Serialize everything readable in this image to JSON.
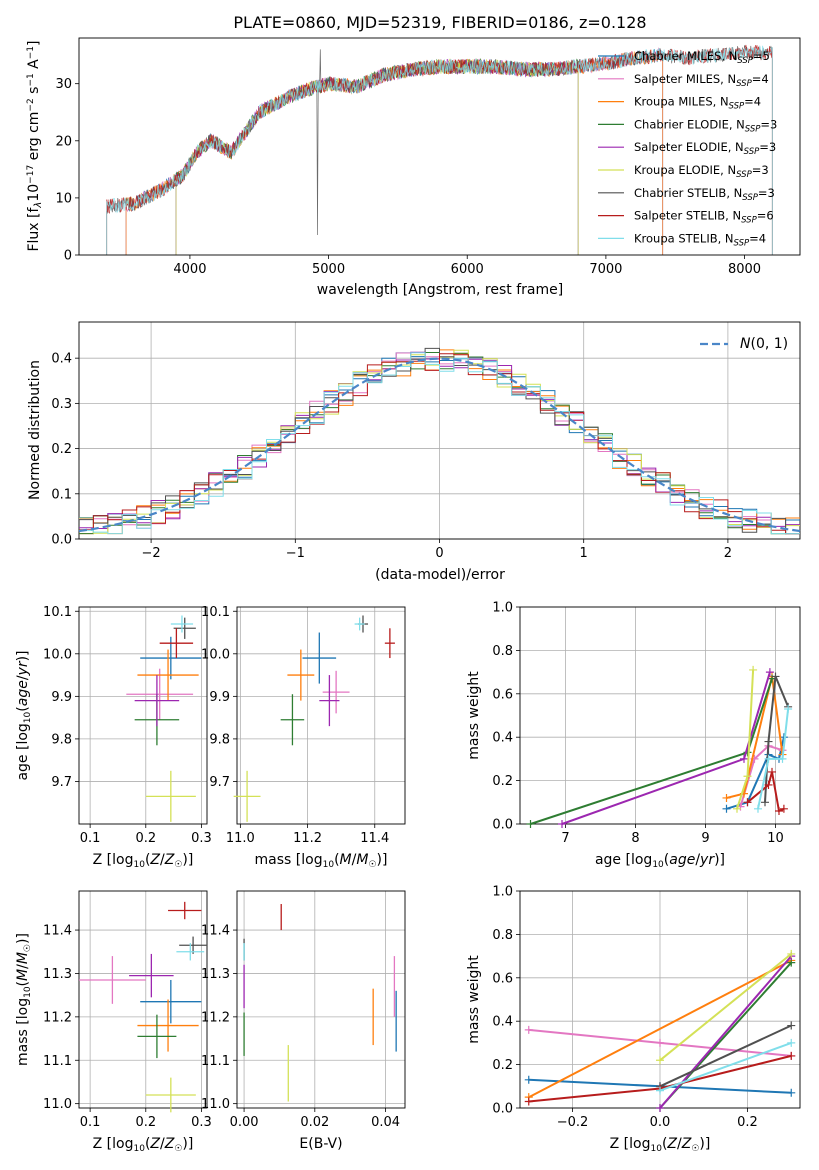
{
  "figure": {
    "title": "PLATE=0860, MJD=52319, FIBERID=0186, z=0.128"
  },
  "model_colors": {
    "Chabrier MILES": "#1f77b4",
    "Salpeter MILES": "#e377c2",
    "Kroupa MILES": "#ff7f0e",
    "Chabrier ELODIE": "#2e7d32",
    "Salpeter ELODIE": "#9c27b0",
    "Kroupa ELODIE": "#d4e157",
    "Chabrier STELIB": "#505050",
    "Salpeter STELIB": "#b71c1c",
    "Kroupa STELIB": "#80deea"
  },
  "chart_data": [
    {
      "id": "spectrum",
      "type": "line",
      "title": "PLATE=0860, MJD=52319, FIBERID=0186, z=0.128",
      "xlabel": "wavelength [Angstrom, rest frame]",
      "ylabel": "Flux [f_λ 10^-17 erg cm^-2 s^-1 A^-1]",
      "xlim": [
        3200,
        8400
      ],
      "ylim": [
        0,
        38
      ],
      "xticks": [
        4000,
        5000,
        6000,
        7000,
        8000
      ],
      "yticks": [
        0,
        10,
        20,
        30
      ],
      "legend": "top-right",
      "legend_entries": [
        {
          "model": "Chabrier MILES",
          "label": "Chabrier MILES",
          "nssp": "5"
        },
        {
          "model": "Salpeter MILES",
          "label": "Salpeter MILES",
          "nssp": "4"
        },
        {
          "model": "Kroupa MILES",
          "label": "Kroupa MILES",
          "nssp": "4"
        },
        {
          "model": "Chabrier ELODIE",
          "label": "Chabrier ELODIE",
          "nssp": "3"
        },
        {
          "model": "Salpeter ELODIE",
          "label": "Salpeter ELODIE",
          "nssp": "3"
        },
        {
          "model": "Kroupa ELODIE",
          "label": "Kroupa ELODIE",
          "nssp": "3"
        },
        {
          "model": "Chabrier STELIB",
          "label": "Chabrier STELIB",
          "nssp": "3"
        },
        {
          "model": "Salpeter STELIB",
          "label": "Salpeter STELIB",
          "nssp": "6"
        },
        {
          "model": "Kroupa STELIB",
          "label": "Kroupa STELIB",
          "nssp": "4"
        }
      ],
      "observed_continuum": {
        "wavelength": [
          3400,
          3600,
          3800,
          3950,
          4050,
          4150,
          4300,
          4500,
          4700,
          4850,
          5000,
          5200,
          5400,
          5600,
          5800,
          6000,
          6200,
          6400,
          6600,
          6800,
          7000,
          7200,
          7400,
          7600,
          7800,
          8000,
          8200
        ],
        "flux": [
          8.5,
          9.0,
          11.5,
          14.0,
          18.0,
          20.0,
          18.0,
          25.0,
          27.5,
          29.0,
          30.0,
          29.5,
          31.5,
          32.5,
          33.0,
          33.0,
          33.0,
          32.5,
          32.5,
          33.0,
          33.5,
          34.5,
          35.0,
          34.5,
          35.0,
          35.5,
          35.5
        ]
      },
      "model_ranges": [
        {
          "model": "Chabrier MILES",
          "wmin": 3540,
          "wmax": 7410
        },
        {
          "model": "Salpeter MILES",
          "wmin": 3540,
          "wmax": 7410
        },
        {
          "model": "Kroupa MILES",
          "wmin": 3540,
          "wmax": 7410
        },
        {
          "model": "Chabrier ELODIE",
          "wmin": 3900,
          "wmax": 6800
        },
        {
          "model": "Salpeter ELODIE",
          "wmin": 3900,
          "wmax": 6800
        },
        {
          "model": "Kroupa ELODIE",
          "wmin": 3900,
          "wmax": 6800
        },
        {
          "model": "Chabrier STELIB",
          "wmin": 3400,
          "wmax": 8200
        },
        {
          "model": "Salpeter STELIB",
          "wmin": 3400,
          "wmax": 8200
        },
        {
          "model": "Kroupa STELIB",
          "wmin": 3400,
          "wmax": 8200
        }
      ]
    },
    {
      "id": "residuals",
      "type": "area",
      "xlabel": "(data-model)/error",
      "ylabel": "Normed distribution",
      "xlim": [
        -2.5,
        2.5
      ],
      "ylim": [
        0,
        0.48
      ],
      "xticks": [
        -2,
        -1,
        0,
        1,
        2
      ],
      "yticks": [
        0.0,
        0.1,
        0.2,
        0.3,
        0.4
      ],
      "grid": true,
      "legend": "top-right",
      "reference_curve": {
        "label": "N(0,1)",
        "color": "#4a86c8",
        "style": "dashed"
      },
      "histogram": {
        "bin_width": 0.1,
        "x_start": -2.5,
        "n_bins": 50
      }
    },
    {
      "id": "age-vs-Z",
      "type": "scatter",
      "xlabel": "Z [log10(Z/Z☉)]",
      "ylabel": "age [log10(age/yr)]",
      "xlim": [
        0.08,
        0.31
      ],
      "ylim": [
        9.6,
        10.11
      ],
      "xticks": [
        0.1,
        0.2,
        0.3
      ],
      "yticks": [
        9.7,
        9.8,
        9.9,
        10.0,
        10.1
      ],
      "points": [
        {
          "model": "Chabrier MILES",
          "x": 0.245,
          "xerr": 0.055,
          "y": 9.99,
          "yerr": 0.05
        },
        {
          "model": "Salpeter MILES",
          "x": 0.225,
          "xerr": 0.06,
          "y": 9.905,
          "yerr": 0.06
        },
        {
          "model": "Kroupa MILES",
          "x": 0.24,
          "xerr": 0.055,
          "y": 9.95,
          "yerr": 0.06
        },
        {
          "model": "Chabrier ELODIE",
          "x": 0.22,
          "xerr": 0.04,
          "y": 9.845,
          "yerr": 0.06
        },
        {
          "model": "Salpeter ELODIE",
          "x": 0.22,
          "xerr": 0.04,
          "y": 9.89,
          "yerr": 0.06
        },
        {
          "model": "Kroupa ELODIE",
          "x": 0.245,
          "xerr": 0.045,
          "y": 9.665,
          "yerr": 0.06
        },
        {
          "model": "Chabrier STELIB",
          "x": 0.27,
          "xerr": 0.02,
          "y": 10.06,
          "yerr": 0.025
        },
        {
          "model": "Salpeter STELIB",
          "x": 0.255,
          "xerr": 0.03,
          "y": 10.025,
          "yerr": 0.035
        },
        {
          "model": "Kroupa STELIB",
          "x": 0.265,
          "xerr": 0.02,
          "y": 10.07,
          "yerr": 0.02
        }
      ]
    },
    {
      "id": "age-vs-mass",
      "type": "scatter",
      "xlabel": "mass [log10(M/M☉)]",
      "xlim": [
        10.99,
        11.49
      ],
      "ylim": [
        9.6,
        10.11
      ],
      "xticks": [
        11.0,
        11.2,
        11.4
      ],
      "yticks": [
        9.7,
        9.8,
        9.9,
        10.0,
        10.1
      ],
      "points": [
        {
          "model": "Chabrier MILES",
          "x": 11.235,
          "xerr": 0.05,
          "y": 9.99,
          "yerr": 0.06
        },
        {
          "model": "Salpeter MILES",
          "x": 11.285,
          "xerr": 0.04,
          "y": 9.91,
          "yerr": 0.05
        },
        {
          "model": "Kroupa MILES",
          "x": 11.18,
          "xerr": 0.04,
          "y": 9.95,
          "yerr": 0.06
        },
        {
          "model": "Chabrier ELODIE",
          "x": 11.155,
          "xerr": 0.035,
          "y": 9.845,
          "yerr": 0.06
        },
        {
          "model": "Salpeter ELODIE",
          "x": 11.265,
          "xerr": 0.03,
          "y": 9.89,
          "yerr": 0.06
        },
        {
          "model": "Kroupa ELODIE",
          "x": 11.02,
          "xerr": 0.04,
          "y": 9.665,
          "yerr": 0.06
        },
        {
          "model": "Chabrier STELIB",
          "x": 11.365,
          "xerr": 0.015,
          "y": 10.07,
          "yerr": 0.02
        },
        {
          "model": "Salpeter STELIB",
          "x": 11.445,
          "xerr": 0.015,
          "y": 10.025,
          "yerr": 0.035
        },
        {
          "model": "Kroupa STELIB",
          "x": 11.355,
          "xerr": 0.015,
          "y": 10.07,
          "yerr": 0.015
        }
      ]
    },
    {
      "id": "weight-vs-age",
      "type": "line",
      "xlabel": "age [log10(age/yr)]",
      "ylabel": "mass weight",
      "xlim": [
        6.35,
        10.35
      ],
      "ylim": [
        0,
        1.0
      ],
      "xticks": [
        7,
        8,
        9,
        10
      ],
      "yticks": [
        0.0,
        0.2,
        0.4,
        0.6,
        0.8,
        1.0
      ],
      "grid": true,
      "series": [
        {
          "model": "Chabrier MILES",
          "x": [
            9.3,
            9.6,
            9.9,
            10.05,
            10.12
          ],
          "y": [
            0.07,
            0.1,
            0.32,
            0.3,
            0.4
          ]
        },
        {
          "model": "Salpeter MILES",
          "x": [
            9.5,
            9.7,
            9.9,
            10.1
          ],
          "y": [
            0.08,
            0.3,
            0.36,
            0.34
          ]
        },
        {
          "model": "Kroupa MILES",
          "x": [
            9.3,
            9.55,
            9.95,
            10.1
          ],
          "y": [
            0.12,
            0.14,
            0.68,
            0.32
          ]
        },
        {
          "model": "Chabrier ELODIE",
          "x": [
            6.5,
            9.6,
            9.95
          ],
          "y": [
            0.0,
            0.33,
            0.67
          ]
        },
        {
          "model": "Salpeter ELODIE",
          "x": [
            6.95,
            9.55,
            9.92
          ],
          "y": [
            0.0,
            0.3,
            0.7
          ]
        },
        {
          "model": "Kroupa ELODIE",
          "x": [
            9.45,
            9.6,
            9.68
          ],
          "y": [
            0.07,
            0.22,
            0.71
          ]
        },
        {
          "model": "Chabrier STELIB",
          "x": [
            9.85,
            9.9,
            10.0,
            10.18
          ],
          "y": [
            0.1,
            0.38,
            0.68,
            0.54
          ]
        },
        {
          "model": "Salpeter STELIB",
          "x": [
            9.6,
            9.9,
            9.95,
            10.05,
            10.12
          ],
          "y": [
            0.1,
            0.18,
            0.24,
            0.06,
            0.07
          ]
        },
        {
          "model": "Kroupa STELIB",
          "x": [
            9.75,
            9.9,
            10.1,
            10.18
          ],
          "y": [
            0.07,
            0.3,
            0.3,
            0.53
          ]
        }
      ]
    },
    {
      "id": "mass-vs-Z",
      "type": "scatter",
      "xlabel": "Z [log10(Z/Z☉)]",
      "ylabel": "mass [log10(M/M☉)]",
      "xlim": [
        0.08,
        0.31
      ],
      "ylim": [
        10.99,
        11.49
      ],
      "xticks": [
        0.1,
        0.2,
        0.3
      ],
      "yticks": [
        11.0,
        11.1,
        11.2,
        11.3,
        11.4
      ],
      "points": [
        {
          "model": "Chabrier MILES",
          "x": 0.245,
          "xerr": 0.055,
          "y": 11.235,
          "yerr": 0.05
        },
        {
          "model": "Salpeter MILES",
          "x": 0.14,
          "xerr": 0.06,
          "y": 11.285,
          "yerr": 0.055
        },
        {
          "model": "Kroupa MILES",
          "x": 0.24,
          "xerr": 0.055,
          "y": 11.18,
          "yerr": 0.06
        },
        {
          "model": "Chabrier ELODIE",
          "x": 0.22,
          "xerr": 0.035,
          "y": 11.155,
          "yerr": 0.05
        },
        {
          "model": "Salpeter ELODIE",
          "x": 0.21,
          "xerr": 0.04,
          "y": 11.295,
          "yerr": 0.05
        },
        {
          "model": "Kroupa ELODIE",
          "x": 0.245,
          "xerr": 0.045,
          "y": 11.02,
          "yerr": 0.04
        },
        {
          "model": "Chabrier STELIB",
          "x": 0.285,
          "xerr": 0.025,
          "y": 11.365,
          "yerr": 0.02
        },
        {
          "model": "Salpeter STELIB",
          "x": 0.27,
          "xerr": 0.03,
          "y": 11.445,
          "yerr": 0.02
        },
        {
          "model": "Kroupa STELIB",
          "x": 0.28,
          "xerr": 0.025,
          "y": 11.35,
          "yerr": 0.02
        }
      ]
    },
    {
      "id": "mass-vs-ebv",
      "type": "scatter",
      "xlabel": "E(B-V)",
      "xlim": [
        -0.002,
        0.0455
      ],
      "ylim": [
        10.99,
        11.49
      ],
      "xticks": [
        0.0,
        0.02,
        0.04
      ],
      "yticks": [
        11.0,
        11.1,
        11.2,
        11.3,
        11.4
      ],
      "points": [
        {
          "model": "Chabrier MILES",
          "x": 0.043,
          "y": 11.19,
          "yerr": 0.07
        },
        {
          "model": "Salpeter MILES",
          "x": 0.0425,
          "y": 11.27,
          "yerr": 0.07
        },
        {
          "model": "Kroupa MILES",
          "x": 0.0365,
          "y": 11.2,
          "yerr": 0.065
        },
        {
          "model": "Chabrier ELODIE",
          "x": 0.0,
          "y": 11.16,
          "yerr": 0.05
        },
        {
          "model": "Salpeter ELODIE",
          "x": 0.0,
          "y": 11.27,
          "yerr": 0.05
        },
        {
          "model": "Kroupa ELODIE",
          "x": 0.0125,
          "y": 11.07,
          "yerr": 0.065
        },
        {
          "model": "Chabrier STELIB",
          "x": 0.0,
          "y": 11.355,
          "yerr": 0.025
        },
        {
          "model": "Salpeter STELIB",
          "x": 0.0105,
          "y": 11.43,
          "yerr": 0.03
        },
        {
          "model": "Kroupa STELIB",
          "x": 0.0,
          "y": 11.35,
          "yerr": 0.02
        }
      ]
    },
    {
      "id": "weight-vs-Z",
      "type": "line",
      "xlabel": "Z [log10(Z/Z☉)]",
      "ylabel": "mass weight",
      "xlim": [
        -0.32,
        0.32
      ],
      "ylim": [
        0,
        1.0
      ],
      "xticks": [
        -0.2,
        0.0,
        0.2
      ],
      "yticks": [
        0.0,
        0.2,
        0.4,
        0.6,
        0.8,
        1.0
      ],
      "grid": true,
      "series": [
        {
          "model": "Chabrier MILES",
          "x": [
            -0.3,
            0.0,
            0.3
          ],
          "y": [
            0.13,
            0.1,
            0.07
          ]
        },
        {
          "model": "Salpeter MILES",
          "x": [
            -0.3,
            0.0,
            0.3
          ],
          "y": [
            0.36,
            0.3,
            0.24
          ]
        },
        {
          "model": "Kroupa MILES",
          "x": [
            -0.3,
            0.3
          ],
          "y": [
            0.05,
            0.68
          ]
        },
        {
          "model": "Chabrier ELODIE",
          "x": [
            0.0,
            0.3
          ],
          "y": [
            0.0,
            0.67
          ]
        },
        {
          "model": "Salpeter ELODIE",
          "x": [
            0.0,
            0.3
          ],
          "y": [
            0.0,
            0.7
          ]
        },
        {
          "model": "Kroupa ELODIE",
          "x": [
            0.0,
            0.3
          ],
          "y": [
            0.22,
            0.71
          ]
        },
        {
          "model": "Chabrier STELIB",
          "x": [
            0.0,
            0.3
          ],
          "y": [
            0.1,
            0.38
          ]
        },
        {
          "model": "Salpeter STELIB",
          "x": [
            -0.3,
            0.0,
            0.3
          ],
          "y": [
            0.03,
            0.09,
            0.24
          ]
        },
        {
          "model": "Kroupa STELIB",
          "x": [
            0.0,
            0.3
          ],
          "y": [
            0.08,
            0.3
          ]
        }
      ]
    }
  ]
}
